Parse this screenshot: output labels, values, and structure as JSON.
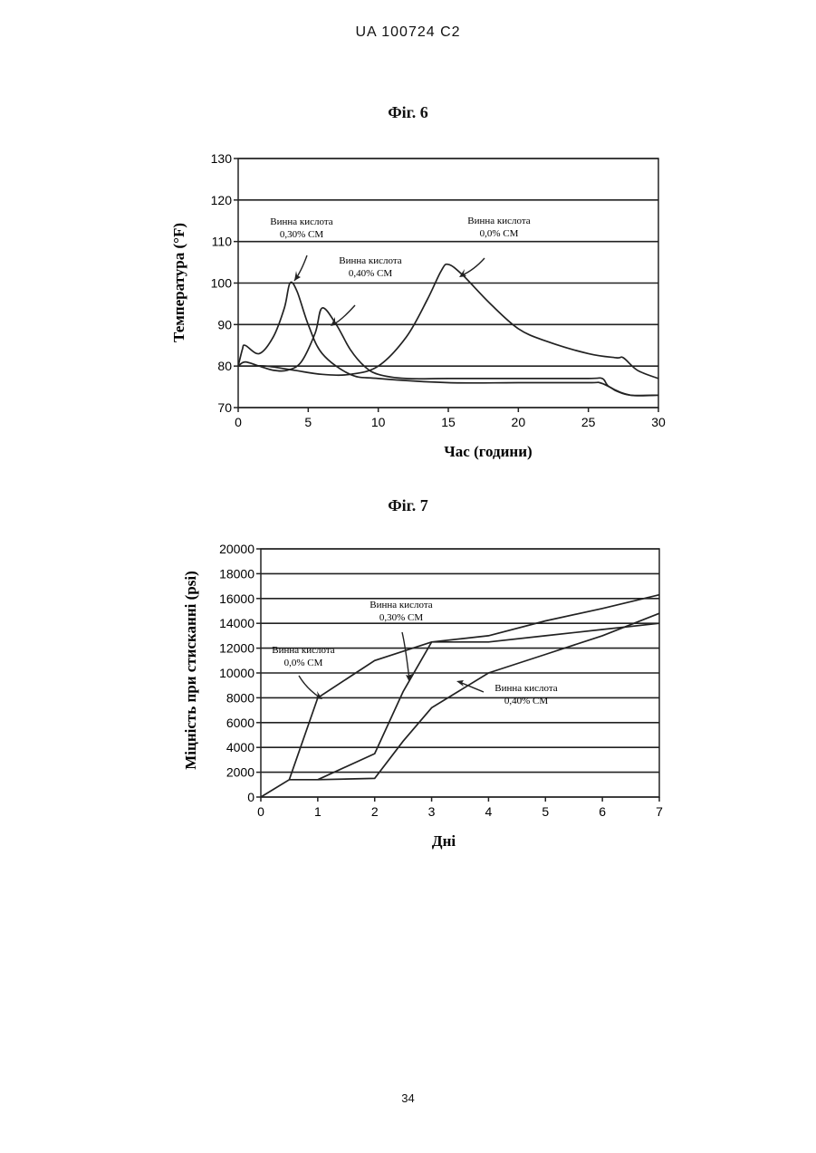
{
  "header": {
    "text": "UA   100724   C2"
  },
  "page_number": "34",
  "figures": [
    {
      "label": "Фіг. 6"
    },
    {
      "label": "Фіг. 7"
    }
  ],
  "chart_data": [
    {
      "type": "line",
      "title": "Фіг. 6",
      "xlabel": "Час (години)",
      "ylabel": "Температура (°F)",
      "xlim": [
        0,
        30
      ],
      "ylim": [
        70,
        130
      ],
      "xticks": [
        "0",
        "5",
        "10",
        "15",
        "20",
        "25",
        "30"
      ],
      "yticks": [
        "70",
        "80",
        "90",
        "100",
        "110",
        "120",
        "130"
      ],
      "grid": "horizontal",
      "series": [
        {
          "name": "Винна кислота 0,30% СМ",
          "x": [
            0,
            0.3,
            0.5,
            1.5,
            2.5,
            3.3,
            3.7,
            4.2,
            5,
            6,
            8,
            10,
            15,
            20,
            25,
            25.8,
            26.5,
            27,
            28,
            30
          ],
          "y": [
            80,
            84,
            85,
            83,
            87,
            94,
            100,
            98,
            90,
            83,
            78,
            77,
            76,
            76,
            76,
            76,
            75,
            74,
            73,
            73
          ]
        },
        {
          "name": "Винна кислота 0,40% СМ",
          "x": [
            0,
            0.5,
            1.5,
            2.5,
            3.5,
            4.5,
            5.5,
            6,
            7,
            8,
            9,
            10,
            12,
            15,
            20,
            25,
            26,
            26.5,
            28,
            30
          ],
          "y": [
            80,
            81,
            80,
            79,
            79,
            81,
            88,
            94,
            90,
            84,
            80,
            78,
            77,
            77,
            77,
            77,
            77,
            75,
            73,
            73
          ]
        },
        {
          "name": "Винна кислота 0,0% СМ",
          "x": [
            0,
            1,
            2,
            4,
            6,
            8,
            10,
            12,
            13.5,
            14.5,
            15,
            16,
            18,
            20,
            22,
            25,
            27,
            27.5,
            28.5,
            30
          ],
          "y": [
            80,
            80,
            80,
            79,
            78,
            78,
            80,
            87,
            96,
            103,
            104.5,
            102,
            95,
            89,
            86,
            83,
            82,
            82,
            79,
            77
          ]
        }
      ],
      "annotations": [
        {
          "line1": "Винна кислота",
          "line2": "0,30% СМ"
        },
        {
          "line1": "Винна кислота",
          "line2": "0,40% СМ"
        },
        {
          "line1": "Винна кислота",
          "line2": "0,0% СМ"
        }
      ]
    },
    {
      "type": "line",
      "title": "Фіг. 7",
      "xlabel": "Дні",
      "ylabel": "Міцність при стисканні (psi)",
      "xlim": [
        0,
        7
      ],
      "ylim": [
        0,
        20000
      ],
      "xticks": [
        "0",
        "1",
        "2",
        "3",
        "4",
        "5",
        "6",
        "7"
      ],
      "yticks": [
        "0",
        "2000",
        "4000",
        "6000",
        "8000",
        "10000",
        "12000",
        "14000",
        "16000",
        "18000",
        "20000"
      ],
      "grid": "horizontal",
      "series": [
        {
          "name": "Винна кислота 0,0% СМ",
          "x": [
            0,
            0.5,
            1,
            2,
            3,
            4,
            5,
            6,
            7
          ],
          "y": [
            0,
            1400,
            8000,
            11000,
            12500,
            13000,
            14200,
            15200,
            16300
          ]
        },
        {
          "name": "Винна кислота 0,30% СМ",
          "x": [
            1,
            2,
            2.5,
            3,
            4,
            5,
            6,
            7
          ],
          "y": [
            1400,
            3500,
            8500,
            12500,
            12500,
            13000,
            13500,
            14000
          ]
        },
        {
          "name": "Винна кислота 0,40% СМ",
          "x": [
            0.5,
            1,
            2,
            2.5,
            3,
            4,
            5,
            6,
            7
          ],
          "y": [
            1400,
            1400,
            1500,
            4500,
            7200,
            10000,
            11500,
            13000,
            14800
          ]
        }
      ],
      "annotations": [
        {
          "line1": "Винна кислота",
          "line2": "0,30% СМ"
        },
        {
          "line1": "Винна кислота",
          "line2": "0,0% СМ"
        },
        {
          "line1": "Винна кислота",
          "line2": "0,40% СМ"
        }
      ]
    }
  ]
}
